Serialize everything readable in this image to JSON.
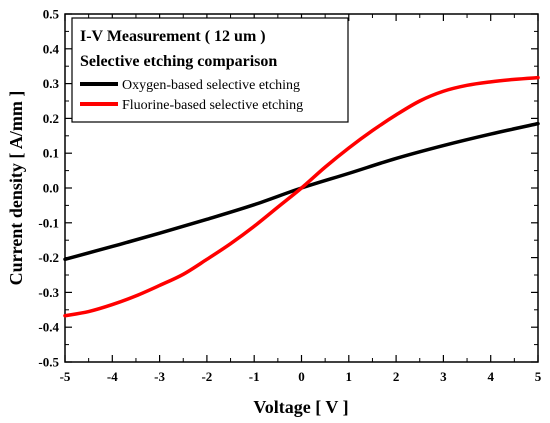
{
  "chart_data": {
    "type": "line",
    "title_lines": [
      "I-V Measurement ( 12 um )",
      "Selective etching comparison"
    ],
    "xlabel": "Voltage [ V ]",
    "ylabel": "Current density [ A/mm ]",
    "xlim": [
      -5,
      5
    ],
    "ylim": [
      -0.5,
      0.5
    ],
    "x_ticks": [
      "-5",
      "-4",
      "-3",
      "-2",
      "-1",
      "0",
      "1",
      "2",
      "3",
      "4",
      "5"
    ],
    "y_ticks": [
      "-0.5",
      "-0.4",
      "-0.3",
      "-0.2",
      "-0.1",
      "0.0",
      "0.1",
      "0.2",
      "0.3",
      "0.4",
      "0.5"
    ],
    "grid": false,
    "legend_position": "top-left",
    "series": [
      {
        "name": "Oxygen-based selective etching",
        "color": "#000000",
        "x": [
          -5,
          -4,
          -3,
          -2,
          -1,
          0,
          1,
          2,
          3,
          4,
          5
        ],
        "y": [
          -0.205,
          -0.168,
          -0.13,
          -0.09,
          -0.048,
          0.0,
          0.042,
          0.085,
          0.122,
          0.155,
          0.185
        ]
      },
      {
        "name": "Fluorine-based selective etching",
        "color": "#ff0000",
        "x": [
          -5,
          -4.5,
          -4,
          -3.5,
          -3,
          -2.5,
          -2,
          -1.5,
          -1,
          -0.5,
          0,
          0.5,
          1,
          1.5,
          2,
          2.5,
          3,
          3.5,
          4,
          4.5,
          5
        ],
        "y": [
          -0.367,
          -0.355,
          -0.335,
          -0.31,
          -0.28,
          -0.248,
          -0.205,
          -0.16,
          -0.11,
          -0.055,
          0.0,
          0.06,
          0.115,
          0.165,
          0.21,
          0.25,
          0.278,
          0.295,
          0.305,
          0.312,
          0.317
        ]
      }
    ]
  }
}
